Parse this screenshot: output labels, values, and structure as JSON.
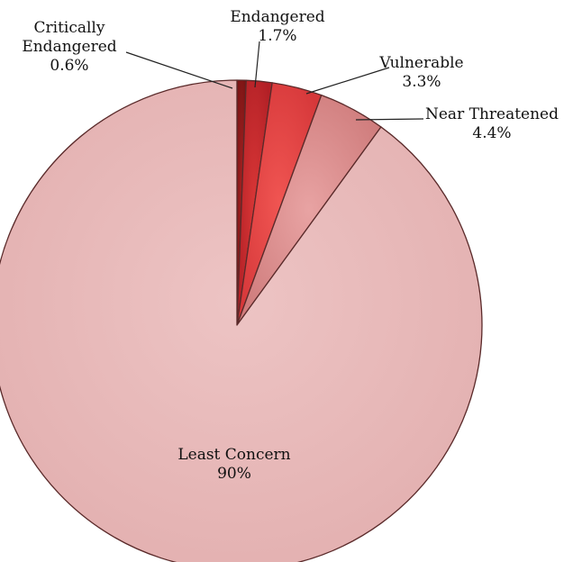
{
  "chart_data": {
    "type": "pie",
    "slices": [
      {
        "label": "Critically Endangered",
        "label_lines": [
          "Critically",
          "Endangered"
        ],
        "value_text": "0.6%",
        "value": 0.6,
        "color": "#8b1a1a"
      },
      {
        "label": "Endangered",
        "label_lines": [
          "Endangered"
        ],
        "value_text": "1.7%",
        "value": 1.7,
        "color": "#c0272d"
      },
      {
        "label": "Vulnerable",
        "label_lines": [
          "Vulnerable"
        ],
        "value_text": "3.3%",
        "value": 3.3,
        "color": "#e0413f"
      },
      {
        "label": "Near Threatened",
        "label_lines": [
          "Near Threatened"
        ],
        "value_text": "4.4%",
        "value": 4.4,
        "color": "#d98a8a"
      },
      {
        "label": "Least Concern",
        "label_lines": [
          "Least Concern"
        ],
        "value_text": "90%",
        "value": 90,
        "color": "#e8b7b7"
      }
    ]
  }
}
